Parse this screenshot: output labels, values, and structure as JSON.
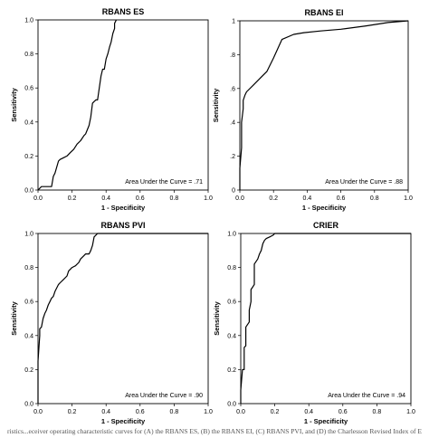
{
  "caption": "ristics...eceiver operating characteristic curves for (A) the RBANS ES, (B) the RBANS EI, (C) RBANS PVI, and (D) the Charlesson Revised Index of E",
  "ticks": [
    "0.0",
    "0.2",
    "0.4",
    "0.6",
    "0.8",
    "1.0"
  ],
  "ticks_short": [
    "0",
    ".2",
    ".4",
    ".6",
    ".8",
    "1"
  ],
  "chart_data": [
    {
      "type": "line",
      "title": "RBANS ES",
      "xlabel": "1 - Specificity",
      "ylabel": "Sensitivity",
      "xlim": [
        0,
        1
      ],
      "ylim": [
        0,
        1
      ],
      "annotation": "Area Under the Curve = .71",
      "x": [
        0,
        0.02,
        0.03,
        0.05,
        0.08,
        0.09,
        0.1,
        0.12,
        0.13,
        0.15,
        0.17,
        0.19,
        0.21,
        0.23,
        0.25,
        0.27,
        0.28,
        0.3,
        0.31,
        0.32,
        0.33,
        0.34,
        0.35,
        0.36,
        0.37,
        0.38,
        0.39,
        0.4,
        0.41,
        0.42,
        0.43,
        0.44,
        0.45,
        0.45,
        0.46
      ],
      "y": [
        0,
        0.02,
        0.02,
        0.02,
        0.02,
        0.08,
        0.1,
        0.17,
        0.18,
        0.19,
        0.2,
        0.22,
        0.24,
        0.27,
        0.29,
        0.32,
        0.33,
        0.38,
        0.43,
        0.51,
        0.52,
        0.53,
        0.53,
        0.6,
        0.67,
        0.71,
        0.71,
        0.77,
        0.8,
        0.84,
        0.87,
        0.92,
        0.95,
        0.98,
        1.0
      ]
    },
    {
      "type": "line",
      "title": "RBANS EI",
      "xlabel": "1 - Specificity",
      "ylabel": "Sensitivity",
      "xlim": [
        0,
        1
      ],
      "ylim": [
        0,
        1
      ],
      "annotation": "Area Under the Curve = .88",
      "x": [
        0,
        0.0,
        0.01,
        0.01,
        0.02,
        0.02,
        0.03,
        0.04,
        0.08,
        0.12,
        0.16,
        0.2,
        0.25,
        0.32,
        0.38,
        0.48,
        0.6,
        0.75,
        0.88,
        1.0
      ],
      "y": [
        0,
        0.13,
        0.25,
        0.4,
        0.48,
        0.53,
        0.56,
        0.58,
        0.62,
        0.66,
        0.7,
        0.78,
        0.89,
        0.92,
        0.93,
        0.94,
        0.95,
        0.97,
        0.99,
        1.0
      ]
    },
    {
      "type": "line",
      "title": "RBANS PVI",
      "xlabel": "1 - Specificity",
      "ylabel": "Sensitivity",
      "xlim": [
        0,
        1
      ],
      "ylim": [
        0,
        1
      ],
      "annotation": "Area Under the Curve = .90",
      "x": [
        0,
        0.0,
        0.0,
        0.01,
        0.01,
        0.02,
        0.03,
        0.04,
        0.05,
        0.06,
        0.07,
        0.08,
        0.09,
        0.1,
        0.12,
        0.13,
        0.15,
        0.17,
        0.18,
        0.2,
        0.22,
        0.24,
        0.25,
        0.27,
        0.28,
        0.3,
        0.31,
        0.32,
        0.33,
        0.35,
        0.38,
        0.43,
        0.46,
        0.48,
        0.55,
        0.58,
        1.0
      ],
      "y": [
        0,
        0.05,
        0.25,
        0.4,
        0.44,
        0.45,
        0.5,
        0.53,
        0.55,
        0.58,
        0.6,
        0.62,
        0.63,
        0.66,
        0.7,
        0.71,
        0.73,
        0.75,
        0.78,
        0.8,
        0.81,
        0.83,
        0.85,
        0.87,
        0.88,
        0.88,
        0.9,
        0.93,
        0.98,
        1.0,
        1.0,
        1.0,
        1.0,
        1.0,
        1.0,
        1.0,
        1.0
      ]
    },
    {
      "type": "line",
      "title": "CRIER",
      "xlabel": "1 - Specificity",
      "ylabel": "Sensitivity",
      "xlim": [
        0,
        1
      ],
      "ylim": [
        0,
        1
      ],
      "annotation": "Area Under the Curve = .94",
      "x": [
        0,
        0.0,
        0.01,
        0.02,
        0.02,
        0.03,
        0.03,
        0.05,
        0.05,
        0.06,
        0.06,
        0.08,
        0.08,
        0.1,
        0.11,
        0.12,
        0.13,
        0.14,
        0.15,
        0.17,
        0.19,
        0.2,
        1.0
      ],
      "y": [
        0,
        0.08,
        0.2,
        0.2,
        0.33,
        0.34,
        0.45,
        0.48,
        0.55,
        0.6,
        0.67,
        0.7,
        0.82,
        0.85,
        0.88,
        0.9,
        0.94,
        0.96,
        0.97,
        0.98,
        0.99,
        1.0,
        1.0
      ]
    }
  ]
}
